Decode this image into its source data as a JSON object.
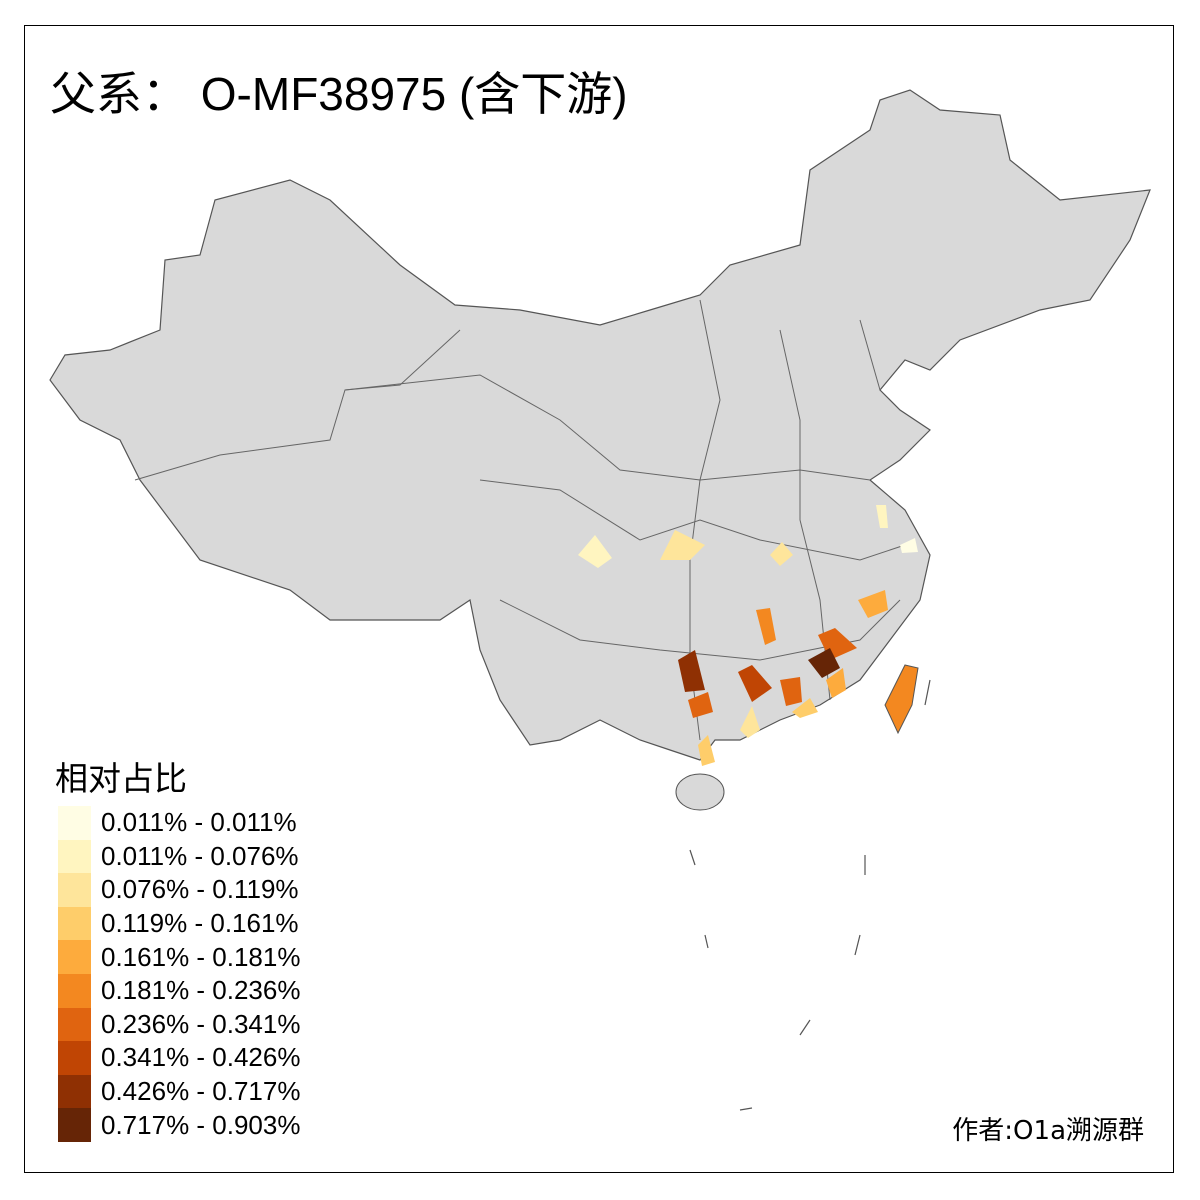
{
  "title": "父系： O-MF38975 (含下游)",
  "legend": {
    "title": "相对占比",
    "items": [
      {
        "label": "0.011% - 0.011%",
        "color": "#fffde4"
      },
      {
        "label": "0.011% - 0.076%",
        "color": "#fff5c0"
      },
      {
        "label": "0.076% - 0.119%",
        "color": "#fee59b"
      },
      {
        "label": "0.119% - 0.161%",
        "color": "#fecd6a"
      },
      {
        "label": "0.161% - 0.181%",
        "color": "#fdab3d"
      },
      {
        "label": "0.181% - 0.236%",
        "color": "#f38820"
      },
      {
        "label": "0.236% - 0.341%",
        "color": "#e06410"
      },
      {
        "label": "0.341% - 0.426%",
        "color": "#c04504"
      },
      {
        "label": "0.426% - 0.717%",
        "color": "#8f3003"
      },
      {
        "label": "0.717% - 0.903%",
        "color": "#662506"
      }
    ]
  },
  "map": {
    "base_color": "#d9d9d9",
    "border_color": "#555555"
  },
  "author": "作者:O1a溯源群"
}
